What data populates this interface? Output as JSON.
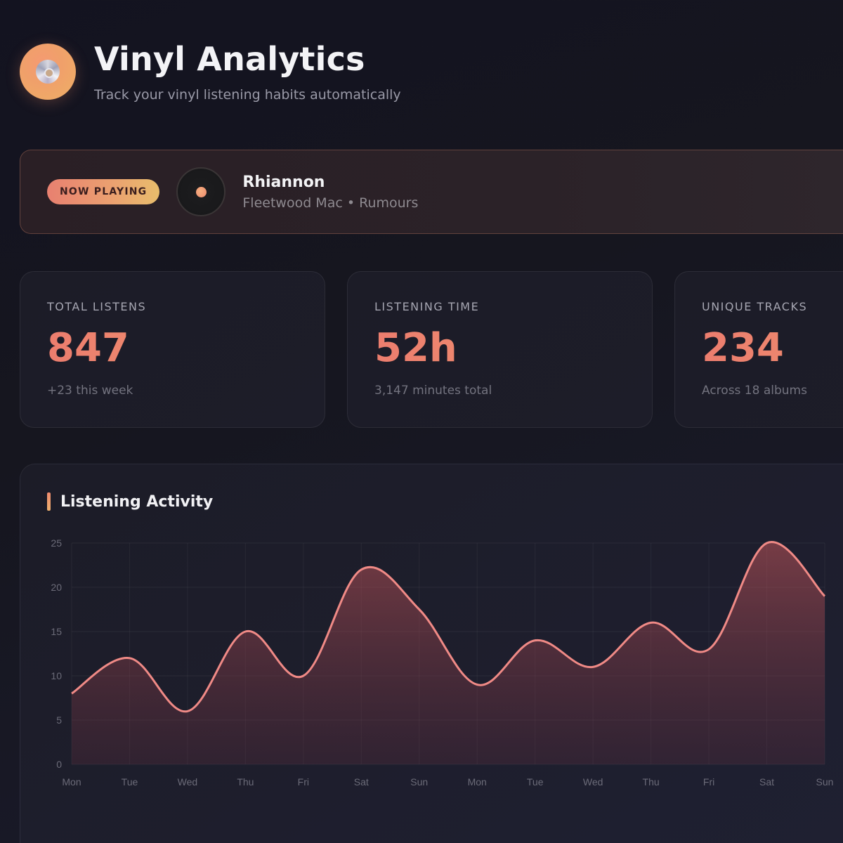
{
  "header": {
    "logo_icon": "vinyl-disc-icon",
    "title": "Vinyl Analytics",
    "subtitle": "Track your vinyl listening habits automatically"
  },
  "now_playing": {
    "badge": "NOW PLAYING",
    "icon": "spinning-record-icon",
    "track": "Rhiannon",
    "meta": "Fleetwood Mac • Rumours"
  },
  "stats": [
    {
      "label": "TOTAL LISTENS",
      "value": "847",
      "sub": "+23 this week"
    },
    {
      "label": "LISTENING TIME",
      "value": "52h",
      "sub": "3,147 minutes total"
    },
    {
      "label": "UNIQUE TRACKS",
      "value": "234",
      "sub": "Across 18 albums"
    }
  ],
  "chart": {
    "title": "Listening Activity"
  },
  "colors": {
    "accent": "#ee8570",
    "accent_end": "#edb06e",
    "line": "#f08a86",
    "background": "#15151f"
  },
  "chart_data": {
    "type": "area",
    "title": "Listening Activity",
    "xlabel": "",
    "ylabel": "",
    "categories": [
      "Mon",
      "Tue",
      "Wed",
      "Thu",
      "Fri",
      "Sat",
      "Sun",
      "Mon",
      "Tue",
      "Wed",
      "Thu",
      "Fri",
      "Sat",
      "Sun"
    ],
    "values": [
      8,
      12,
      6,
      15,
      10,
      22,
      17.5,
      9,
      14,
      11,
      16,
      13,
      25,
      19
    ],
    "y_ticks": [
      0,
      5,
      10,
      15,
      20,
      25
    ],
    "ylim": [
      0,
      25
    ],
    "grid": true,
    "smooth": true,
    "legend": null
  }
}
